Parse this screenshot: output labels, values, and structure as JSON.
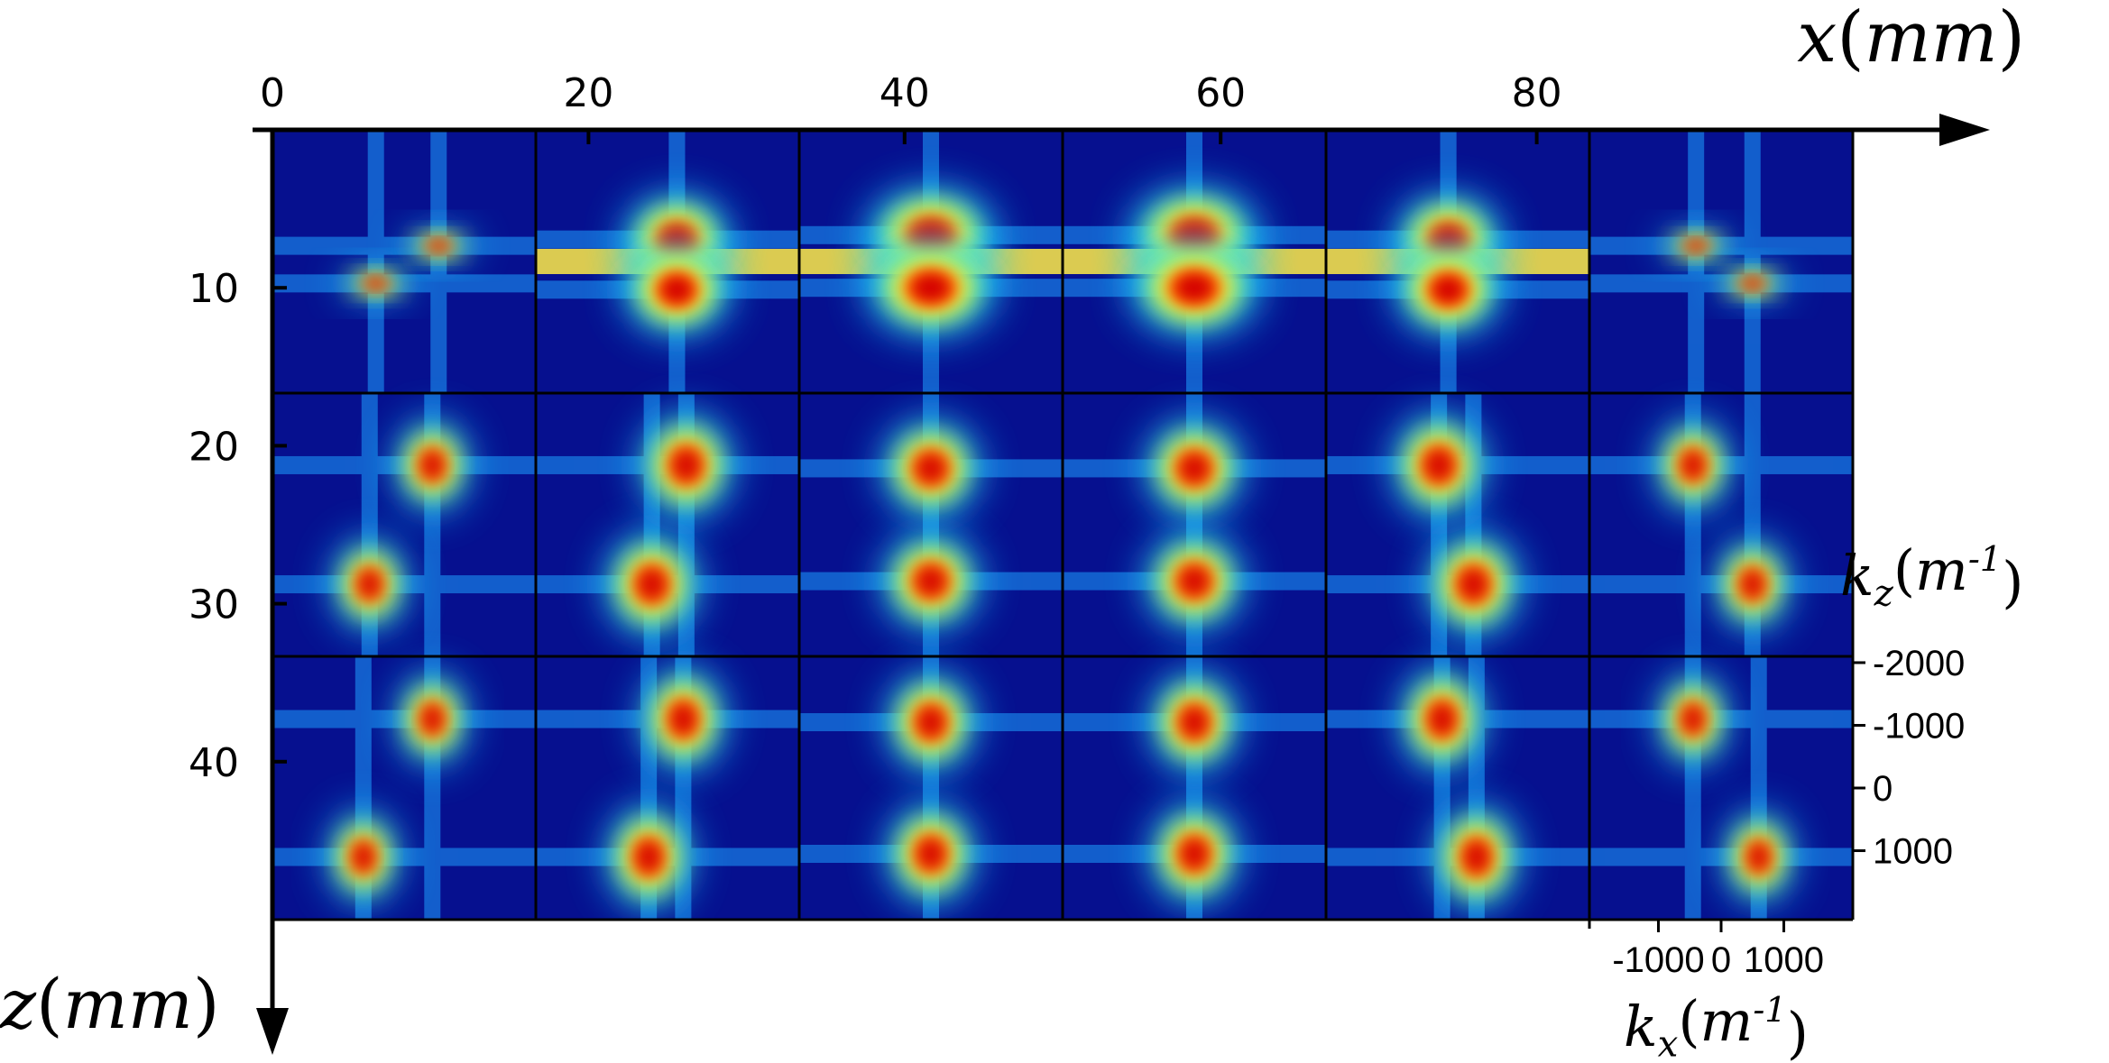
{
  "chart_data": {
    "type": "heatmap",
    "title": "",
    "x_axis": {
      "label": "x(mm)",
      "position": "top",
      "ticks": [
        "0",
        "20",
        "40",
        "60",
        "80"
      ],
      "tick_values": [
        0,
        20,
        40,
        60,
        80
      ],
      "range": [
        0,
        100
      ]
    },
    "z_axis": {
      "label": "z(mm)",
      "position": "left",
      "direction": "down",
      "ticks": [
        "10",
        "20",
        "30",
        "40"
      ],
      "tick_values": [
        10,
        20,
        30,
        40
      ],
      "range": [
        0,
        50
      ]
    },
    "kz_axis": {
      "label": "k_z(m^-1)",
      "position": "right",
      "ticks": [
        "-2000",
        "-1000",
        "0",
        "1000"
      ],
      "tick_values": [
        -2000,
        -1000,
        0,
        1000
      ],
      "range": [
        -2100,
        2100
      ]
    },
    "kx_axis": {
      "label": "k_x(m^-1)",
      "position": "bottom",
      "ticks": [
        "-1000",
        "0",
        "1000"
      ],
      "tick_values": [
        -1000,
        0,
        1000
      ],
      "range": [
        -2100,
        2100
      ]
    },
    "grid_rows": 3,
    "grid_cols": 6,
    "colormap": "jet",
    "panel_centers_x_mm": [
      8.3,
      25,
      41.7,
      58.3,
      75,
      91.7
    ],
    "panel_centers_z_mm": [
      8.3,
      25,
      41.7
    ],
    "lobes": [
      [
        [
          [
            -450,
            350,
            300,
            150,
            0.7
          ],
          [
            550,
            -250,
            300,
            150,
            0.7
          ]
        ],
        [
          [
            150,
            -350,
            450,
            380,
            1.0
          ],
          [
            150,
            450,
            450,
            380,
            1.0
          ]
        ],
        [
          [
            0,
            -420,
            550,
            400,
            1.0
          ],
          [
            0,
            420,
            550,
            400,
            1.0
          ]
        ],
        [
          [
            0,
            -420,
            550,
            400,
            1.0
          ],
          [
            0,
            420,
            550,
            400,
            1.0
          ]
        ],
        [
          [
            -150,
            -350,
            450,
            380,
            1.0
          ],
          [
            -150,
            450,
            450,
            380,
            1.0
          ]
        ],
        [
          [
            -400,
            -250,
            300,
            150,
            0.7
          ],
          [
            500,
            350,
            300,
            150,
            0.7
          ]
        ]
      ],
      [
        [
          [
            -550,
            950,
            320,
            400,
            0.85
          ],
          [
            450,
            -950,
            320,
            400,
            0.85
          ]
        ],
        [
          [
            -250,
            950,
            400,
            450,
            0.9
          ],
          [
            300,
            -950,
            400,
            450,
            0.9
          ]
        ],
        [
          [
            0,
            900,
            420,
            420,
            0.9
          ],
          [
            0,
            -900,
            420,
            420,
            0.9
          ]
        ],
        [
          [
            0,
            900,
            420,
            420,
            0.9
          ],
          [
            0,
            -900,
            420,
            420,
            0.9
          ]
        ],
        [
          [
            250,
            950,
            400,
            450,
            0.9
          ],
          [
            -300,
            -950,
            400,
            450,
            0.9
          ]
        ],
        [
          [
            500,
            950,
            320,
            400,
            0.85
          ],
          [
            -450,
            -950,
            320,
            400,
            0.85
          ]
        ]
      ],
      [
        [
          [
            -650,
            1100,
            300,
            400,
            0.85
          ],
          [
            450,
            -1100,
            300,
            400,
            0.85
          ]
        ],
        [
          [
            -300,
            1100,
            360,
            450,
            0.9
          ],
          [
            250,
            -1100,
            360,
            450,
            0.9
          ]
        ],
        [
          [
            0,
            1050,
            380,
            430,
            0.9
          ],
          [
            0,
            -1050,
            380,
            430,
            0.9
          ]
        ],
        [
          [
            0,
            1050,
            380,
            430,
            0.9
          ],
          [
            0,
            -1050,
            380,
            430,
            0.9
          ]
        ],
        [
          [
            300,
            1100,
            360,
            450,
            0.9
          ],
          [
            -250,
            -1100,
            360,
            450,
            0.9
          ]
        ],
        [
          [
            600,
            1100,
            300,
            400,
            0.85
          ],
          [
            -450,
            -1100,
            300,
            400,
            0.85
          ]
        ]
      ]
    ],
    "legend": "none"
  }
}
